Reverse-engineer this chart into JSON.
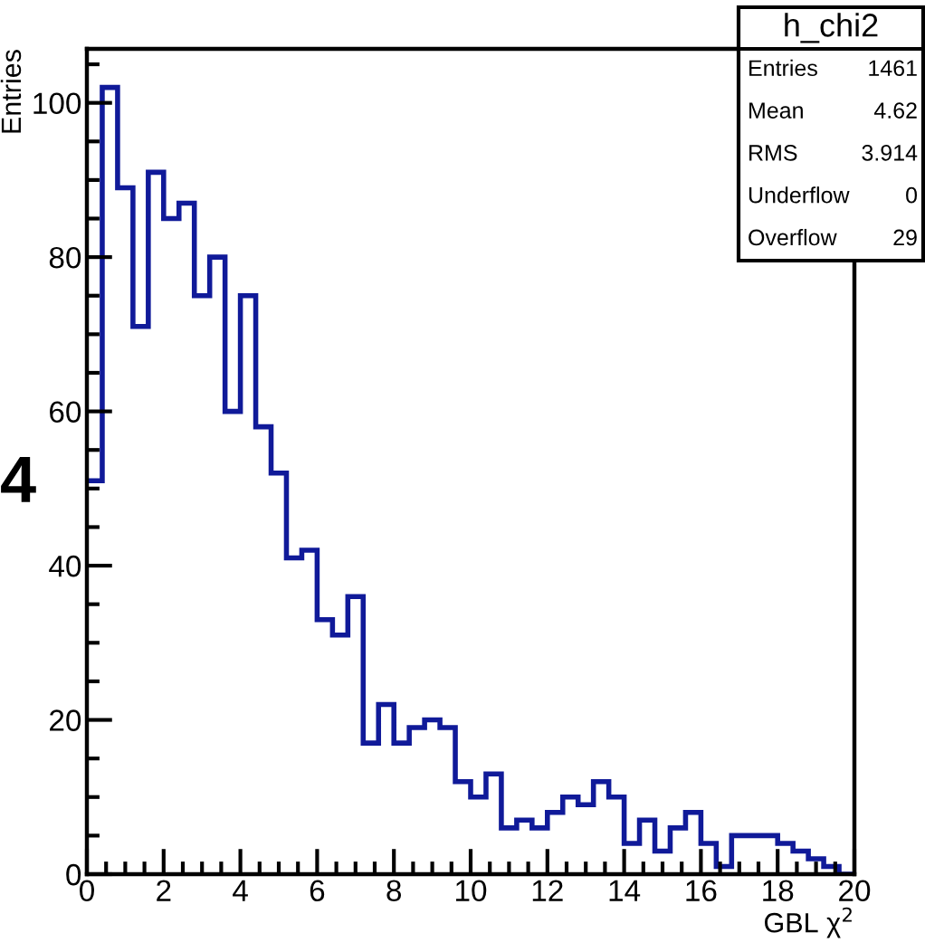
{
  "chart_data": {
    "type": "histogram",
    "xlabel": "GBL χ$^{2}$",
    "ylabel": "Entries",
    "bins": [
      0,
      0.4,
      0.8,
      1.2,
      1.6,
      2.0,
      2.4,
      2.8,
      3.2,
      3.6,
      4.0,
      4.4,
      4.8,
      5.2,
      5.6,
      6.0,
      6.4,
      6.8,
      7.2,
      7.6,
      8.0,
      8.4,
      8.8,
      9.2,
      9.6,
      10.0,
      10.4,
      10.8,
      11.2,
      11.6,
      12.0,
      12.4,
      12.8,
      13.2,
      13.6,
      14.0,
      14.4,
      14.8,
      15.2,
      15.6,
      16.0,
      16.4,
      16.8,
      17.2,
      17.6,
      18.0,
      18.4,
      18.8,
      19.2,
      19.6,
      20.0
    ],
    "values": [
      51,
      102,
      89,
      71,
      91,
      85,
      87,
      75,
      80,
      60,
      75,
      58,
      52,
      41,
      42,
      33,
      31,
      36,
      17,
      22,
      17,
      19,
      20,
      19,
      12,
      10,
      13,
      6,
      7,
      6,
      8,
      10,
      9,
      12,
      10,
      4,
      7,
      3,
      6,
      8,
      4,
      1,
      5,
      5,
      5,
      4,
      3,
      2,
      1,
      0
    ],
    "color": "#101a99",
    "xlim": [
      0,
      20
    ],
    "ylim": [
      0,
      107
    ],
    "xticks": [
      0,
      2,
      4,
      6,
      8,
      10,
      12,
      14,
      16,
      18,
      20
    ],
    "yticks": [
      0,
      20,
      40,
      60,
      80,
      100
    ],
    "grid": false,
    "annotations": [
      "4",
      "h_chi2",
      "Entries",
      "1461",
      "Mean",
      "4.62",
      "RMS",
      "3.914",
      "Underflow",
      "0",
      "Overflow",
      "29"
    ]
  }
}
